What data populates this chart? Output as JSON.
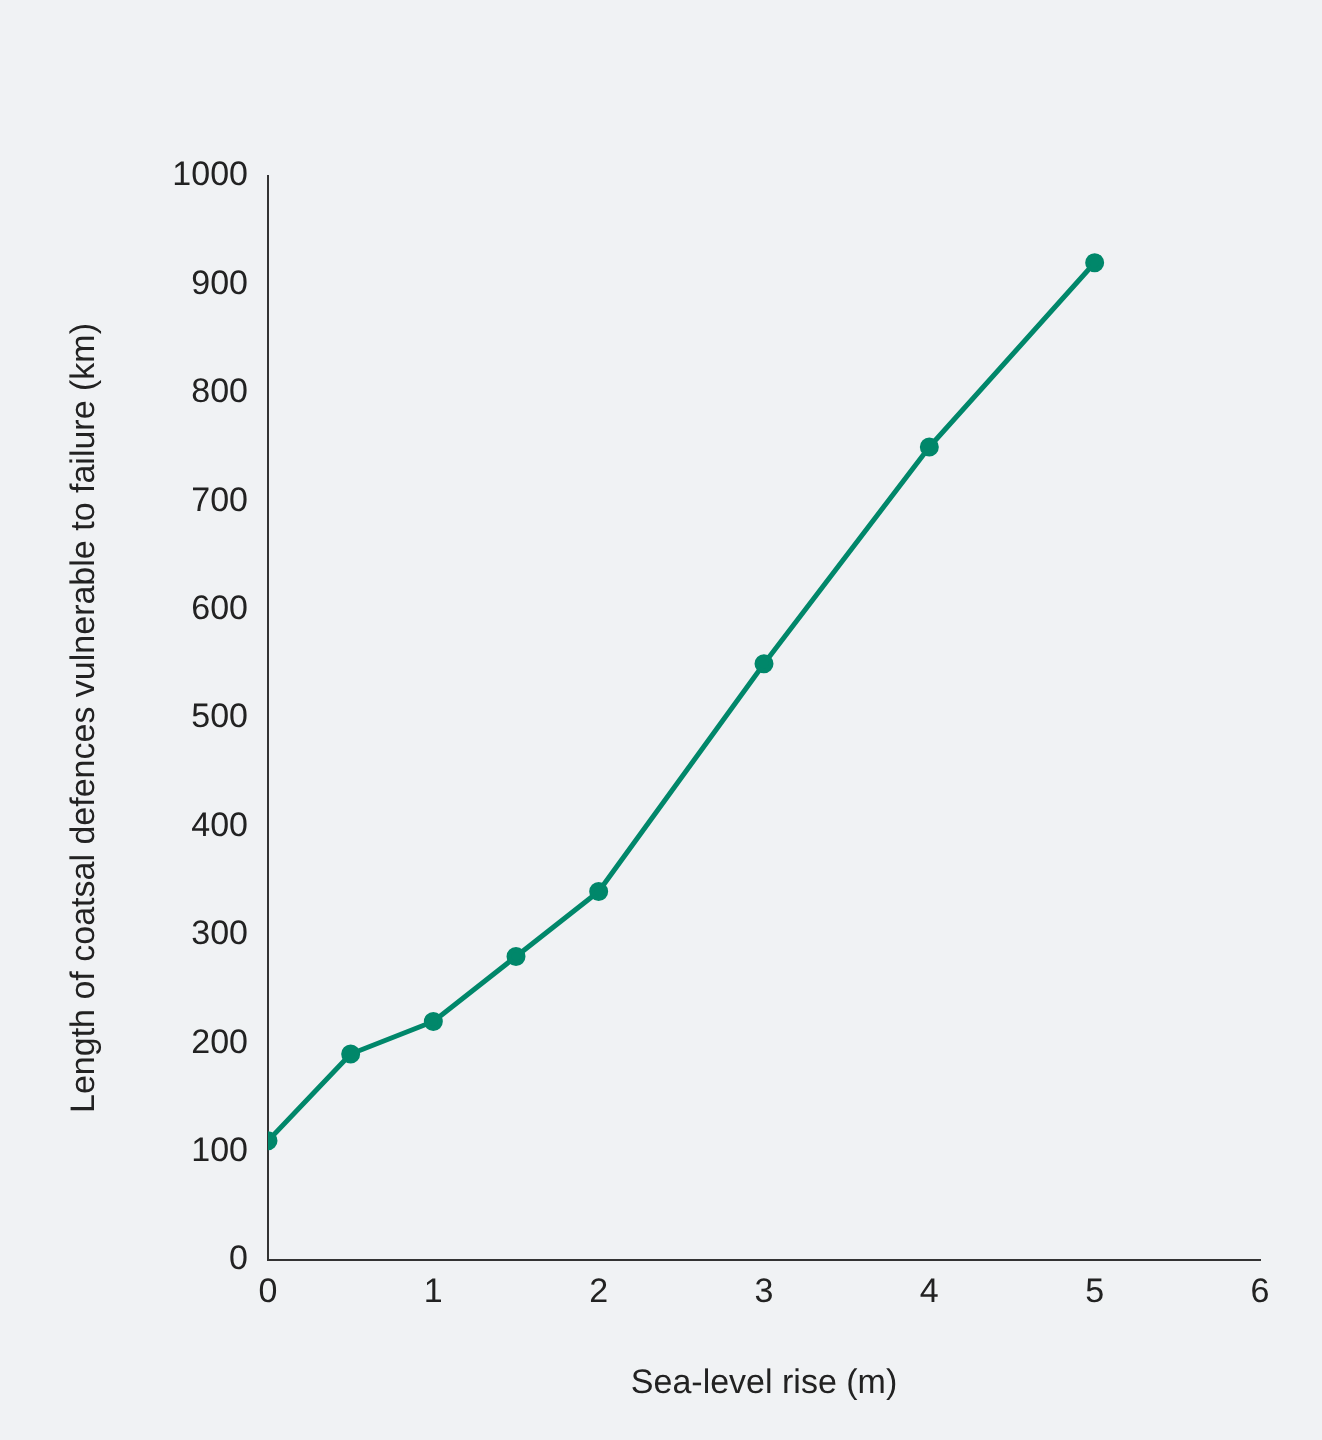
{
  "chart_data": {
    "type": "line",
    "xlabel": "Sea-level rise (m)",
    "ylabel": "Length of coatsal defences vulnerable to failure (km)",
    "x": [
      0,
      0.5,
      1,
      1.5,
      2,
      3,
      4,
      5
    ],
    "series": [
      {
        "color": "#00876a",
        "values": [
          110,
          190,
          220,
          280,
          340,
          550,
          750,
          920
        ]
      }
    ],
    "xlim": [
      0,
      6
    ],
    "xticks": [
      0,
      1,
      2,
      3,
      4,
      5,
      6
    ],
    "ylim": [
      0,
      1000
    ],
    "yticks": [
      0,
      100,
      200,
      300,
      400,
      500,
      600,
      700,
      800,
      900,
      1000
    ],
    "grid": false,
    "legend": false,
    "marker": "circle",
    "line_style": "solid"
  }
}
